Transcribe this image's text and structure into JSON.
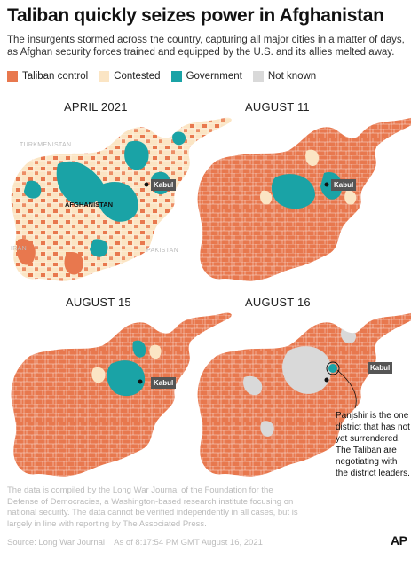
{
  "header": {
    "title": "Taliban quickly seizes power in Afghanistan",
    "subtitle": "The insurgents stormed across the country, capturing all major cities in a matter of days, as Afghan security forces trained and equipped by the U.S. and its allies melted away."
  },
  "legend": [
    {
      "label": "Taliban control",
      "color": "#e8784e"
    },
    {
      "label": "Contested",
      "color": "#fbe5c4"
    },
    {
      "label": "Government",
      "color": "#1aa3a6"
    },
    {
      "label": "Not known",
      "color": "#d9d9d9"
    }
  ],
  "panels": [
    {
      "label": "APRIL 2021"
    },
    {
      "label": "AUGUST 11"
    },
    {
      "label": "AUGUST 15"
    },
    {
      "label": "AUGUST 16"
    }
  ],
  "map_labels": {
    "kabul": "Kabul",
    "country": "AFGHANISTAN",
    "turkmenistan": "TURKMENISTAN",
    "iran": "IRAN",
    "pakistan": "PAKISTAN"
  },
  "callout": "Panjshir is the one district that has not yet surrendered. The Taliban are negotiating with the district leaders.",
  "footer": {
    "note": "The data is compiled by the Long War Journal of the Foundation for the Defense of Democracies, a Washington-based research institute focusing on national security. The data cannot be verified independently in all cases, but is largely in line with reporting by The Associated Press.",
    "source": "Source: Long War Journal",
    "timestamp": "As of 8:17:54 PM GMT August 16, 2021",
    "logo": "AP"
  }
}
